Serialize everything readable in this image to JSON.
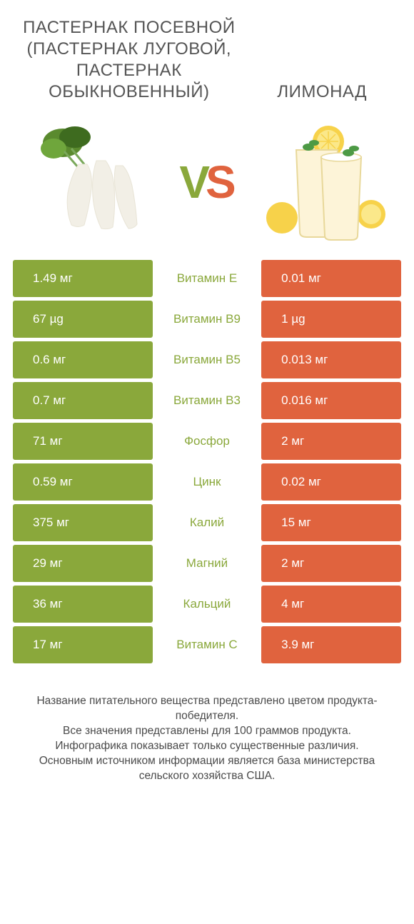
{
  "header": {
    "left": "ПАСТЕРНАК ПОСЕВНОЙ (ПАСТЕРНАК ЛУГОВОЙ, ПАСТЕРНАК ОБЫКНОВЕННЫЙ)",
    "right": "ЛИМОНАД",
    "vs_v": "V",
    "vs_s": "S"
  },
  "colors": {
    "left": "#8aa83b",
    "right": "#e0633e",
    "text": "#4a4a4a",
    "bg": "#ffffff"
  },
  "leftImage": {
    "name": "parsnip",
    "rootColor": "#f2efe6",
    "rootShade": "#e8e4d6",
    "leafColor": "#5a8a2e",
    "leafDark": "#3e6b1f"
  },
  "rightImage": {
    "name": "lemonade",
    "glassFill": "#fdf4d8",
    "glassEdge": "#e8d89a",
    "lemonOuter": "#f7d24a",
    "lemonInner": "#fbe88a",
    "mintColor": "#4d9a45"
  },
  "rows": [
    {
      "left": "1.49 мг",
      "mid": "Витамин E",
      "right": "0.01 мг",
      "winner": "left"
    },
    {
      "left": "67 µg",
      "mid": "Витамин B9",
      "right": "1 µg",
      "winner": "left"
    },
    {
      "left": "0.6 мг",
      "mid": "Витамин B5",
      "right": "0.013 мг",
      "winner": "left"
    },
    {
      "left": "0.7 мг",
      "mid": "Витамин B3",
      "right": "0.016 мг",
      "winner": "left"
    },
    {
      "left": "71 мг",
      "mid": "Фосфор",
      "right": "2 мг",
      "winner": "left"
    },
    {
      "left": "0.59 мг",
      "mid": "Цинк",
      "right": "0.02 мг",
      "winner": "left"
    },
    {
      "left": "375 мг",
      "mid": "Калий",
      "right": "15 мг",
      "winner": "left"
    },
    {
      "left": "29 мг",
      "mid": "Магний",
      "right": "2 мг",
      "winner": "left"
    },
    {
      "left": "36 мг",
      "mid": "Кальций",
      "right": "4 мг",
      "winner": "left"
    },
    {
      "left": "17 мг",
      "mid": "Витамин C",
      "right": "3.9 мг",
      "winner": "left"
    }
  ],
  "footer": {
    "l1": "Название питательного вещества представлено цветом продукта-победителя.",
    "l2": "Все значения представлены для 100 граммов продукта.",
    "l3": "Инфографика показывает только существенные различия.",
    "l4": "Основным источником информации является база министерства сельского хозяйства США."
  }
}
